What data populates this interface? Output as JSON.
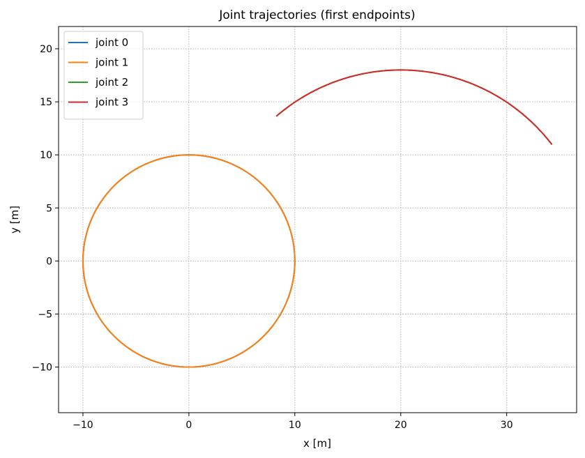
{
  "chart_data": {
    "type": "line",
    "title": "Joint trajectories (first endpoints)",
    "xlabel": "x [m]",
    "ylabel": "y [m]",
    "xlim": [
      -12.3,
      36.6
    ],
    "ylim": [
      -14.3,
      22.1
    ],
    "xticks": [
      -10,
      0,
      10,
      20,
      30
    ],
    "yticks": [
      -10,
      -5,
      0,
      5,
      10,
      15,
      20
    ],
    "grid": true,
    "legend_position": "top-left",
    "series": [
      {
        "name": "joint 0",
        "color": "#1f77b4",
        "shape": "circle",
        "center": [
          0,
          0
        ],
        "radius": 10
      },
      {
        "name": "joint 1",
        "color": "#ff7f0e",
        "shape": "circle",
        "center": [
          0,
          0
        ],
        "radius": 10
      },
      {
        "name": "joint 2",
        "color": "#2ca02c",
        "shape": "arc",
        "center": [
          20,
          0
        ],
        "radius": 18,
        "from_point": [
          8.2,
          13.7
        ],
        "to_point": [
          34.3,
          11.0
        ]
      },
      {
        "name": "joint 3",
        "color": "#d62728",
        "shape": "arc",
        "center": [
          20,
          0
        ],
        "radius": 18,
        "from_point": [
          8.2,
          13.7
        ],
        "to_point": [
          34.3,
          11.0
        ]
      }
    ]
  }
}
